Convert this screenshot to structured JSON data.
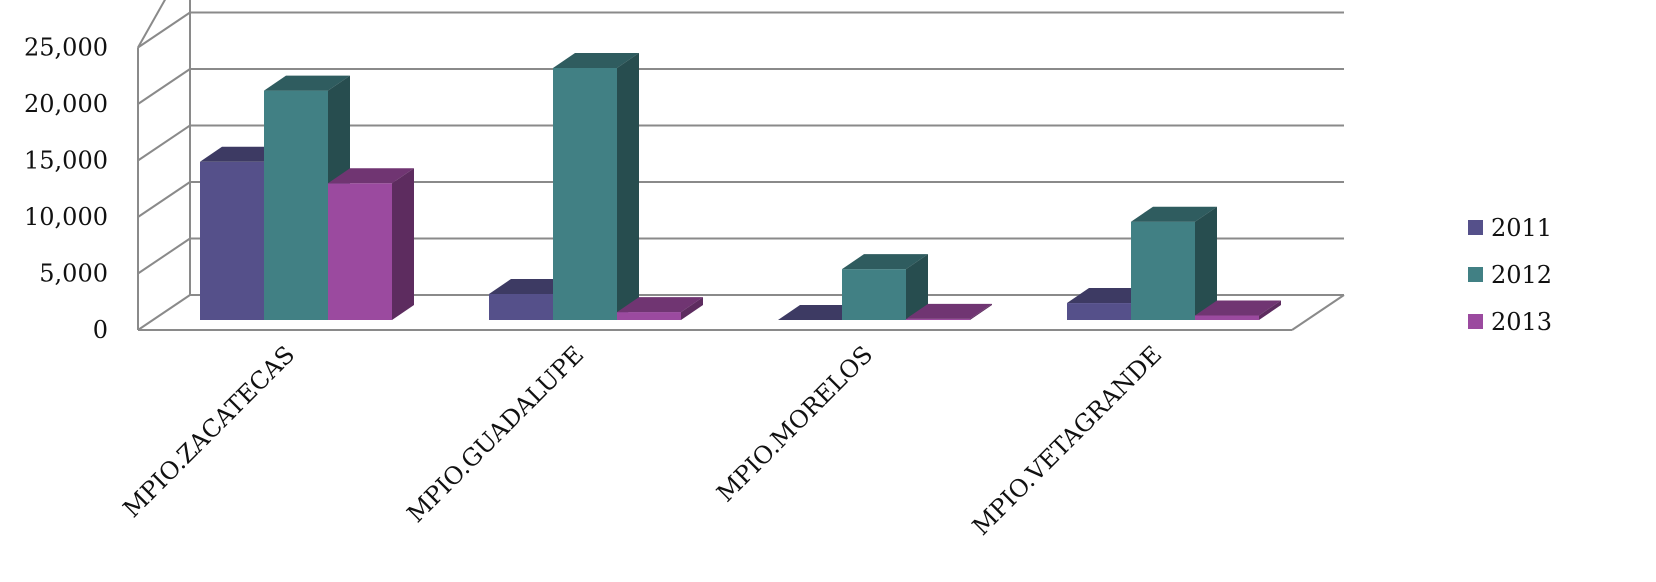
{
  "chart_data": {
    "type": "bar",
    "subtype": "3d-clustered-column",
    "title": "",
    "xlabel": "",
    "ylabel": "",
    "categories": [
      "MPIO.ZACATECAS",
      "MPIO.GUADALUPE",
      "MPIO.MORELOS",
      "MPIO.VETAGRANDE"
    ],
    "series": [
      {
        "name": "2011",
        "color": "#55508a",
        "values": [
          14000,
          2300,
          0,
          1500
        ]
      },
      {
        "name": "2012",
        "color": "#418084",
        "values": [
          20300,
          22300,
          4500,
          8700
        ]
      },
      {
        "name": "2013",
        "color": "#9b4a9f",
        "values": [
          12100,
          700,
          100,
          400
        ]
      }
    ],
    "ylim": [
      0,
      25000
    ],
    "yticks": [
      0,
      5000,
      10000,
      15000,
      20000,
      25000
    ],
    "ytick_labels": [
      "0",
      "5,000",
      "10,000",
      "15,000",
      "20,000",
      "25,000"
    ],
    "grid": true,
    "legend_position": "right"
  }
}
